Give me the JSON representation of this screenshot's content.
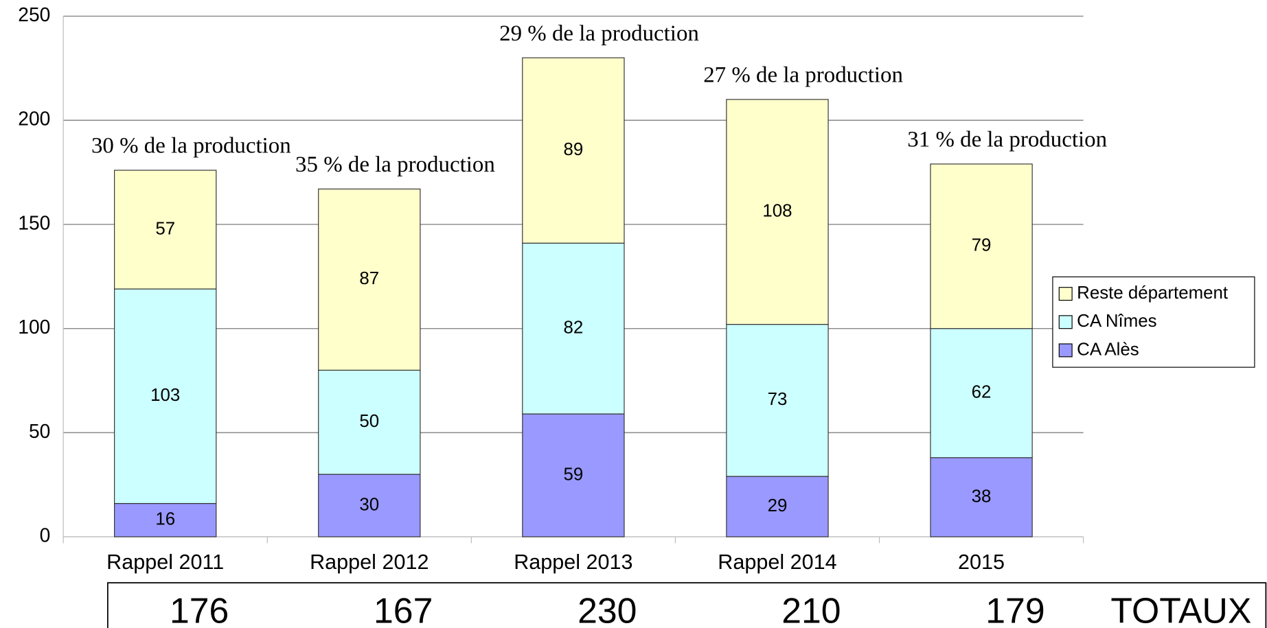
{
  "chart_data": {
    "type": "stacked_bar",
    "categories": [
      "Rappel 2011",
      "Rappel 2012",
      "Rappel 2013",
      "Rappel 2014",
      "2015"
    ],
    "series": [
      {
        "name": "CA Alès",
        "color": "#9999ff",
        "values": [
          16,
          30,
          59,
          29,
          38
        ]
      },
      {
        "name": "CA Nîmes",
        "color": "#ccffff",
        "values": [
          103,
          50,
          82,
          73,
          62
        ]
      },
      {
        "name": "Reste département",
        "color": "#ffffcc",
        "values": [
          57,
          87,
          89,
          108,
          79
        ]
      }
    ],
    "annotations": [
      "30 % de la production",
      "35 % de la production",
      "29 % de la production",
      "27 % de la production",
      "31 % de la production"
    ],
    "totals": [
      176,
      167,
      230,
      210,
      179
    ],
    "totals_label": "TOTAUX",
    "ylim": [
      0,
      250
    ],
    "yticks": [
      0,
      50,
      100,
      150,
      200,
      250
    ],
    "grid": true,
    "legend": "right"
  }
}
